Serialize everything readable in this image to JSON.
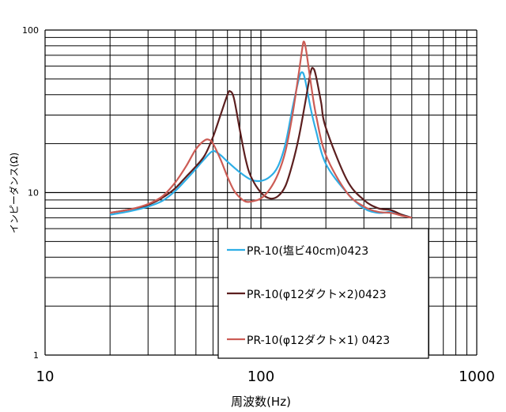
{
  "chart_data": {
    "type": "line",
    "xlabel": "周波数(Hz)",
    "ylabel": "インピーダンス(Ω)",
    "x_scale": "log",
    "y_scale": "log",
    "xlim": [
      10,
      1000
    ],
    "ylim": [
      1,
      100
    ],
    "grid": true,
    "legend_position": "bottom-right",
    "x_tick_labels": [
      "10",
      "100",
      "1000"
    ],
    "y_tick_labels": [
      "1",
      "10",
      "100"
    ],
    "series": [
      {
        "name": "PR-10(塩ビ40cm)0423",
        "color": "#2eaee6",
        "points": [
          [
            20,
            7.3
          ],
          [
            25,
            7.7
          ],
          [
            30,
            8.2
          ],
          [
            35,
            8.9
          ],
          [
            40,
            10.2
          ],
          [
            45,
            12.0
          ],
          [
            50,
            14.0
          ],
          [
            55,
            16.2
          ],
          [
            60,
            18.0
          ],
          [
            65,
            17.0
          ],
          [
            70,
            15.5
          ],
          [
            80,
            13.3
          ],
          [
            90,
            12.0
          ],
          [
            100,
            11.8
          ],
          [
            110,
            12.5
          ],
          [
            120,
            14.5
          ],
          [
            130,
            20.0
          ],
          [
            140,
            33.0
          ],
          [
            150,
            50.0
          ],
          [
            155,
            55.0
          ],
          [
            160,
            50.0
          ],
          [
            170,
            33.0
          ],
          [
            180,
            24.0
          ],
          [
            200,
            15.0
          ],
          [
            250,
            10.0
          ],
          [
            300,
            8.0
          ],
          [
            350,
            7.5
          ],
          [
            400,
            7.6
          ],
          [
            450,
            7.3
          ],
          [
            500,
            7.0
          ]
        ]
      },
      {
        "name": "PR-10(φ12ダクト×2)0423",
        "color": "#5c1f1f",
        "points": [
          [
            20,
            7.5
          ],
          [
            25,
            7.9
          ],
          [
            30,
            8.4
          ],
          [
            35,
            9.3
          ],
          [
            40,
            10.6
          ],
          [
            45,
            12.5
          ],
          [
            50,
            14.5
          ],
          [
            55,
            17.0
          ],
          [
            60,
            22.0
          ],
          [
            65,
            30.0
          ],
          [
            70,
            40.0
          ],
          [
            72,
            42.0
          ],
          [
            75,
            38.0
          ],
          [
            80,
            24.0
          ],
          [
            85,
            16.0
          ],
          [
            90,
            12.5
          ],
          [
            100,
            10.0
          ],
          [
            110,
            9.2
          ],
          [
            120,
            9.5
          ],
          [
            130,
            11.0
          ],
          [
            140,
            15.0
          ],
          [
            150,
            22.0
          ],
          [
            160,
            35.0
          ],
          [
            170,
            55.0
          ],
          [
            175,
            58.0
          ],
          [
            180,
            52.0
          ],
          [
            190,
            36.0
          ],
          [
            200,
            25.0
          ],
          [
            250,
            12.0
          ],
          [
            300,
            9.0
          ],
          [
            350,
            8.0
          ],
          [
            400,
            7.8
          ],
          [
            450,
            7.3
          ],
          [
            500,
            7.0
          ]
        ]
      },
      {
        "name": "PR-10(φ12ダクト×1) 0423",
        "color": "#cc5c55",
        "points": [
          [
            20,
            7.5
          ],
          [
            25,
            7.9
          ],
          [
            30,
            8.5
          ],
          [
            35,
            9.5
          ],
          [
            40,
            11.5
          ],
          [
            45,
            14.5
          ],
          [
            50,
            18.5
          ],
          [
            55,
            21.0
          ],
          [
            58,
            21.0
          ],
          [
            60,
            20.0
          ],
          [
            65,
            16.0
          ],
          [
            70,
            12.5
          ],
          [
            75,
            10.3
          ],
          [
            80,
            9.3
          ],
          [
            85,
            8.8
          ],
          [
            90,
            8.8
          ],
          [
            100,
            9.2
          ],
          [
            110,
            10.5
          ],
          [
            120,
            13.0
          ],
          [
            130,
            18.0
          ],
          [
            140,
            30.0
          ],
          [
            150,
            55.0
          ],
          [
            155,
            75.0
          ],
          [
            158,
            85.0
          ],
          [
            162,
            75.0
          ],
          [
            170,
            48.0
          ],
          [
            180,
            30.0
          ],
          [
            200,
            17.0
          ],
          [
            250,
            10.0
          ],
          [
            300,
            8.2
          ],
          [
            350,
            7.6
          ],
          [
            400,
            7.5
          ],
          [
            450,
            7.2
          ],
          [
            500,
            7.0
          ]
        ]
      }
    ]
  }
}
